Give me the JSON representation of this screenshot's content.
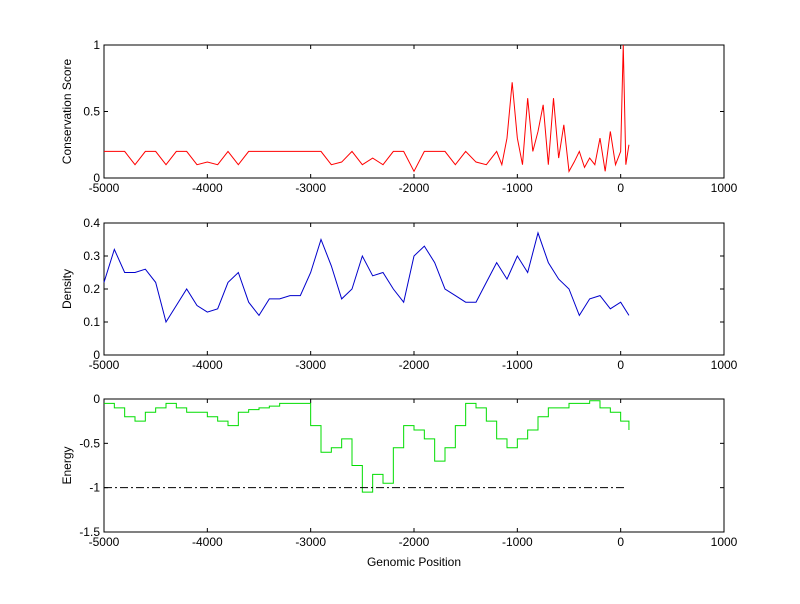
{
  "chart_data": [
    {
      "type": "line",
      "ylabel": "Conservation Score",
      "xlim": [
        -5000,
        1000
      ],
      "xticks": [
        -5000,
        -4000,
        -3000,
        -2000,
        -1000,
        0,
        1000
      ],
      "ylim": [
        0,
        1
      ],
      "yticks": [
        0,
        0.5,
        1
      ],
      "series": [
        {
          "color": "#ff0000",
          "x": [
            -5000,
            -4900,
            -4800,
            -4700,
            -4600,
            -4500,
            -4400,
            -4300,
            -4200,
            -4100,
            -4000,
            -3900,
            -3800,
            -3700,
            -3600,
            -3500,
            -3400,
            -3300,
            -3200,
            -3100,
            -3000,
            -2900,
            -2800,
            -2700,
            -2600,
            -2500,
            -2400,
            -2300,
            -2200,
            -2100,
            -2000,
            -1900,
            -1800,
            -1700,
            -1600,
            -1500,
            -1400,
            -1300,
            -1200,
            -1150,
            -1100,
            -1050,
            -1000,
            -950,
            -900,
            -850,
            -800,
            -750,
            -700,
            -650,
            -600,
            -550,
            -500,
            -450,
            -400,
            -350,
            -300,
            -250,
            -200,
            -150,
            -100,
            -50,
            0,
            25,
            50,
            80
          ],
          "values": [
            0.2,
            0.2,
            0.2,
            0.1,
            0.2,
            0.2,
            0.1,
            0.2,
            0.2,
            0.1,
            0.12,
            0.1,
            0.2,
            0.1,
            0.2,
            0.2,
            0.2,
            0.2,
            0.2,
            0.2,
            0.2,
            0.2,
            0.1,
            0.12,
            0.2,
            0.1,
            0.15,
            0.1,
            0.2,
            0.2,
            0.05,
            0.2,
            0.2,
            0.2,
            0.1,
            0.2,
            0.12,
            0.1,
            0.2,
            0.1,
            0.3,
            0.72,
            0.3,
            0.1,
            0.6,
            0.2,
            0.35,
            0.55,
            0.1,
            0.6,
            0.15,
            0.4,
            0.05,
            0.12,
            0.2,
            0.08,
            0.15,
            0.1,
            0.3,
            0.05,
            0.35,
            0.1,
            0.2,
            1,
            0.1,
            0.25
          ]
        }
      ]
    },
    {
      "type": "line",
      "ylabel": "Density",
      "xlim": [
        -5000,
        1000
      ],
      "xticks": [
        -5000,
        -4000,
        -3000,
        -2000,
        -1000,
        0,
        1000
      ],
      "ylim": [
        0,
        0.4
      ],
      "yticks": [
        0,
        0.1,
        0.2,
        0.3,
        0.4
      ],
      "series": [
        {
          "color": "#0000cc",
          "x": [
            -5000,
            -4900,
            -4800,
            -4700,
            -4600,
            -4500,
            -4400,
            -4300,
            -4200,
            -4100,
            -4000,
            -3900,
            -3800,
            -3700,
            -3600,
            -3500,
            -3400,
            -3300,
            -3200,
            -3100,
            -3000,
            -2900,
            -2800,
            -2700,
            -2600,
            -2500,
            -2400,
            -2300,
            -2200,
            -2100,
            -2000,
            -1900,
            -1800,
            -1700,
            -1600,
            -1500,
            -1400,
            -1300,
            -1200,
            -1100,
            -1000,
            -900,
            -800,
            -700,
            -600,
            -500,
            -400,
            -300,
            -200,
            -100,
            0,
            80
          ],
          "values": [
            0.22,
            0.32,
            0.25,
            0.25,
            0.26,
            0.22,
            0.1,
            0.15,
            0.2,
            0.15,
            0.13,
            0.14,
            0.22,
            0.25,
            0.16,
            0.12,
            0.17,
            0.17,
            0.18,
            0.18,
            0.25,
            0.35,
            0.27,
            0.17,
            0.2,
            0.3,
            0.24,
            0.25,
            0.2,
            0.16,
            0.3,
            0.33,
            0.28,
            0.2,
            0.18,
            0.16,
            0.16,
            0.22,
            0.28,
            0.23,
            0.3,
            0.25,
            0.37,
            0.28,
            0.23,
            0.2,
            0.12,
            0.17,
            0.18,
            0.14,
            0.16,
            0.12
          ]
        }
      ]
    },
    {
      "type": "line",
      "step": true,
      "ylabel": "Energy",
      "xlabel": "Genomic Position",
      "xlim": [
        -5000,
        1000
      ],
      "xticks": [
        -5000,
        -4000,
        -3000,
        -2000,
        -1000,
        0,
        1000
      ],
      "ylim": [
        -1.5,
        0
      ],
      "yticks": [
        -1.5,
        -1,
        -0.5,
        0
      ],
      "series": [
        {
          "color": "#00dd00",
          "x": [
            -5000,
            -4900,
            -4800,
            -4700,
            -4600,
            -4500,
            -4400,
            -4300,
            -4200,
            -4100,
            -4000,
            -3900,
            -3800,
            -3700,
            -3600,
            -3500,
            -3400,
            -3300,
            -3200,
            -3100,
            -3000,
            -2900,
            -2800,
            -2700,
            -2600,
            -2500,
            -2400,
            -2300,
            -2200,
            -2100,
            -2000,
            -1900,
            -1800,
            -1700,
            -1600,
            -1500,
            -1400,
            -1300,
            -1200,
            -1100,
            -1000,
            -900,
            -800,
            -700,
            -600,
            -500,
            -400,
            -300,
            -200,
            -100,
            0,
            80
          ],
          "values": [
            -0.05,
            -0.1,
            -0.2,
            -0.25,
            -0.15,
            -0.1,
            -0.05,
            -0.1,
            -0.15,
            -0.15,
            -0.2,
            -0.25,
            -0.3,
            -0.15,
            -0.12,
            -0.1,
            -0.08,
            -0.05,
            -0.05,
            -0.05,
            -0.3,
            -0.6,
            -0.55,
            -0.45,
            -0.75,
            -1.05,
            -0.85,
            -0.95,
            -0.55,
            -0.3,
            -0.35,
            -0.45,
            -0.7,
            -0.55,
            -0.3,
            -0.05,
            -0.1,
            -0.25,
            -0.45,
            -0.55,
            -0.45,
            -0.35,
            -0.2,
            -0.1,
            -0.1,
            -0.05,
            -0.05,
            -0.02,
            -0.1,
            -0.15,
            -0.25,
            -0.35
          ]
        },
        {
          "color": "#000000",
          "dash": "dash-dot",
          "x": [
            -5000,
            50
          ],
          "values": [
            -1,
            -1
          ]
        }
      ]
    }
  ]
}
